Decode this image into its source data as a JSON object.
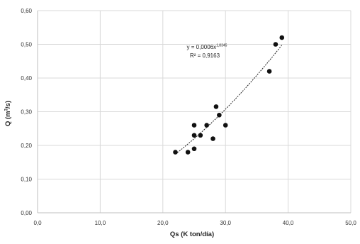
{
  "chart_data": {
    "type": "scatter",
    "xlabel": "Qs (K ton/día)",
    "ylabel_main": "Q (m",
    "ylabel_sup": "3",
    "ylabel_end": "/s)",
    "xlim": [
      0,
      50
    ],
    "ylim": [
      0,
      0.6
    ],
    "x_ticks": [
      0,
      10,
      20,
      30,
      40,
      50
    ],
    "y_ticks": [
      0,
      0.1,
      0.2,
      0.3,
      0.4,
      0.5,
      0.6
    ],
    "x_tick_labels": [
      "0,0",
      "10,0",
      "20,0",
      "30,0",
      "40,0",
      "50,0"
    ],
    "y_tick_labels": [
      "0,00",
      "0,10",
      "0,20",
      "0,30",
      "0,40",
      "0,50",
      "0,60"
    ],
    "grid": true,
    "points": [
      {
        "x": 22.0,
        "y": 0.18
      },
      {
        "x": 24.0,
        "y": 0.18
      },
      {
        "x": 25.0,
        "y": 0.19
      },
      {
        "x": 25.0,
        "y": 0.23
      },
      {
        "x": 25.0,
        "y": 0.26
      },
      {
        "x": 26.0,
        "y": 0.23
      },
      {
        "x": 27.0,
        "y": 0.26
      },
      {
        "x": 28.0,
        "y": 0.22
      },
      {
        "x": 28.5,
        "y": 0.315
      },
      {
        "x": 29.0,
        "y": 0.29
      },
      {
        "x": 30.0,
        "y": 0.26
      },
      {
        "x": 37.0,
        "y": 0.42
      },
      {
        "x": 38.0,
        "y": 0.5
      },
      {
        "x": 39.0,
        "y": 0.52
      }
    ],
    "trendline": {
      "type": "power",
      "coefficient": 0.0006,
      "exponent": 1.8345,
      "x_range": [
        22,
        39
      ],
      "equation_base": "y = 0,0006x",
      "equation_exponent": "1,8345",
      "r2_label": "R² = 0,9163"
    },
    "colors": {
      "points": "#111111",
      "trendline": "#222222",
      "grid": "#d9d9d9",
      "axis": "#bfbfbf"
    }
  }
}
